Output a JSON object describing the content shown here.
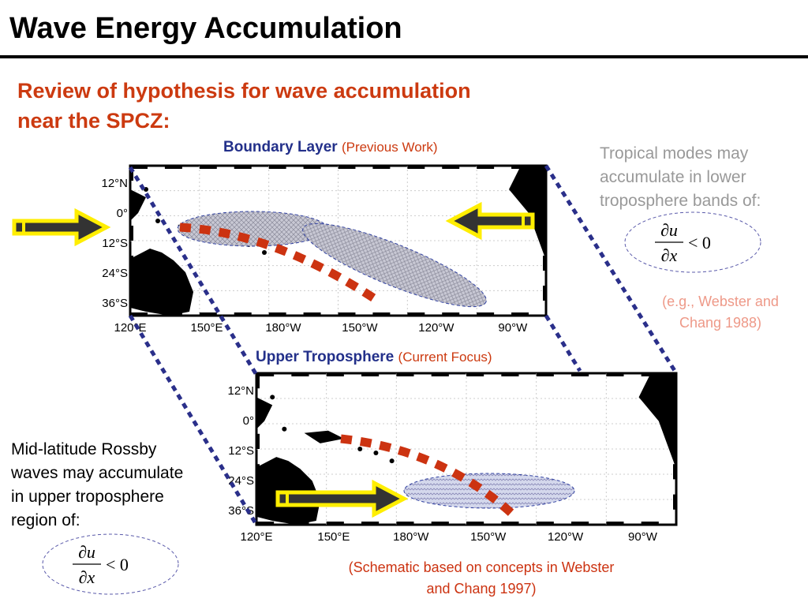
{
  "header": {
    "title": "Wave Energy Accumulation",
    "subtitle": [
      "Review of hypothesis for wave accumulation",
      "near the SPCZ:"
    ]
  },
  "panel_top": {
    "heading": "Boundary Layer",
    "note": "(Previous Work)"
  },
  "panel_bottom": {
    "heading": "Upper Troposphere",
    "note": "(Current Focus)"
  },
  "map_labels": {
    "lat": [
      "12°N",
      "0°",
      "12°S",
      "24°S",
      "36°S"
    ],
    "lon": [
      "120°E",
      "150°E",
      "180°W",
      "150°W",
      "120°W",
      "90°W"
    ]
  },
  "right_note": {
    "lines": [
      "Tropical modes may",
      "accumulate in lower",
      "troposphere bands of:"
    ],
    "citation": [
      "(e.g., Webster and",
      "Chang 1988)"
    ]
  },
  "left_note": {
    "lines": [
      "Mid-latitude Rossby",
      "waves may accumulate",
      "in upper troposphere",
      "region of:"
    ]
  },
  "formula": {
    "numerator": "∂u",
    "denominator": "∂x",
    "relation": "< 0"
  },
  "footer": {
    "citation": [
      "(Schematic based on concepts in Webster",
      "and Chang 1997)"
    ]
  }
}
